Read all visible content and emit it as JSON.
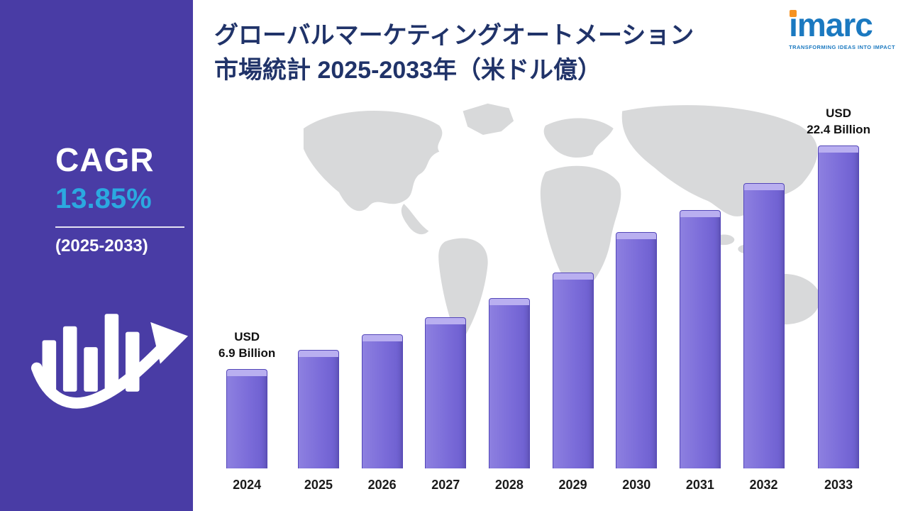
{
  "sidebar": {
    "cagr_label": "CAGR",
    "cagr_value": "13.85%",
    "period": "(2025-2033)"
  },
  "header": {
    "title_line1": "グローバルマーケティングオートメーション",
    "title_line2": "市場統計 2025-2033年（米ドル億）"
  },
  "logo": {
    "brand_i": "i",
    "brand_rest": "marc",
    "tagline": "TRANSFORMING IDEAS INTO IMPACT"
  },
  "chart_data": {
    "type": "bar",
    "title": "グローバルマーケティングオートメーション市場統計 2025-2033年（米ドル億）",
    "categories": [
      "2024",
      "2025",
      "2026",
      "2027",
      "2028",
      "2029",
      "2030",
      "2031",
      "2032",
      "2033"
    ],
    "values": [
      6.9,
      8.2,
      9.3,
      10.5,
      11.8,
      13.6,
      16.4,
      17.9,
      19.8,
      22.4
    ],
    "unit": "USD Billion",
    "ylim": [
      0,
      24
    ],
    "grid": false,
    "legend": "none",
    "first_bar_label": [
      "USD",
      "6.9 Billion"
    ],
    "last_bar_label": [
      "USD",
      "22.4 Billion"
    ],
    "cagr": "13.85%",
    "cagr_period": "2025-2033"
  },
  "colors": {
    "sidebar_bg": "#493ca5",
    "accent_blue": "#2ba9e0",
    "bar_fill": "#7b6cd9",
    "bar_fill_light": "#8d80e0",
    "bar_fill_dark": "#6c5ecf",
    "bar_top": "#b9aff0",
    "bar_border": "#5346b8",
    "title_navy": "#203369",
    "logo_blue": "#1b79c0",
    "logo_orange": "#f69220",
    "map_gray": "#d8d9da"
  }
}
